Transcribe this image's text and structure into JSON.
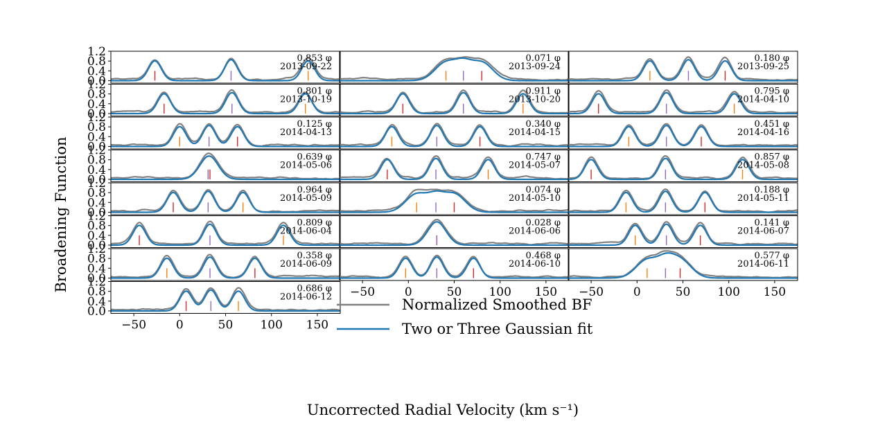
{
  "chart_data": {
    "type": "line",
    "xlabel": "Uncorrected Radial Velocity (km s⁻¹)",
    "ylabel": "Broadening Function",
    "xlim": [
      -75,
      175
    ],
    "ylim": [
      -0.1,
      1.2
    ],
    "yticks": [
      "1.2",
      "0.8",
      "0.4",
      "0.0"
    ],
    "xticks": [
      -50,
      0,
      50,
      100,
      150
    ],
    "xtick_labels": [
      "−50",
      "0",
      "50",
      "100",
      "150"
    ],
    "grid": false,
    "legend": {
      "placement": "lower-center",
      "entries": [
        {
          "label": "Normalized Smoothed BF",
          "color": "#808080"
        },
        {
          "label": "Two or Three Gaussian fit",
          "color": "#1f77b4"
        }
      ]
    },
    "marker_colors": {
      "primary": "#d62728",
      "secondary": "#ff7f0e",
      "tertiary": "#9467bd"
    },
    "phase_suffix": "φ",
    "panels": [
      {
        "phase": "0.853",
        "date": "2013-09-22",
        "v1": -27,
        "v2": 140,
        "v3": 56
      },
      {
        "phase": "0.071",
        "date": "2013-09-24",
        "v1": 80,
        "v2": 41,
        "v3": 60
      },
      {
        "phase": "0.180",
        "phase_label": "0.180",
        "date": "2013-09-25",
        "v1": 96,
        "v2": 14,
        "v3": 56
      },
      {
        "phase": "0.801",
        "date": "2013-10-19",
        "v1": -17,
        "v2": 137,
        "v3": 57
      },
      {
        "phase": "0.911",
        "date": "2013-10-20",
        "v1": -6,
        "v2": 125,
        "v3": 60
      },
      {
        "phase": "0.795",
        "date": "2014-04-10",
        "v1": -42,
        "v2": 106,
        "v3": 32
      },
      {
        "phase": "0.125",
        "date": "2014-04-13",
        "v1": 63,
        "v2": 0,
        "v3": 32
      },
      {
        "phase": "0.340",
        "date": "2014-04-15",
        "v1": 78,
        "v2": -18,
        "v3": 31
      },
      {
        "phase": "0.451",
        "date": "2014-04-16",
        "v1": 70,
        "v2": -9,
        "v3": 32
      },
      {
        "phase": "0.639",
        "date": "2014-05-06",
        "v1": 33,
        "v2": 31,
        "v3": 31
      },
      {
        "phase": "0.747",
        "date": "2014-05-07",
        "v1": -23,
        "v2": 87,
        "v3": 30
      },
      {
        "phase": "0.857",
        "date": "2014-05-08",
        "v1": -50,
        "v2": 115,
        "v3": 31
      },
      {
        "phase": "0.964",
        "date": "2014-05-09",
        "v1": -7,
        "v2": 69,
        "v3": 31
      },
      {
        "phase": "0.074",
        "date": "2014-05-10",
        "v1": 50,
        "v2": 9,
        "v3": 30
      },
      {
        "phase": "0.188",
        "date": "2014-05-11",
        "v1": 74,
        "v2": -12,
        "v3": 31
      },
      {
        "phase": "0.809",
        "date": "2014-06-04",
        "v1": -44,
        "v2": 113,
        "v3": 33
      },
      {
        "phase": "0.028",
        "date": "2014-06-06",
        "v1": 31,
        "v2": 31,
        "v3": 31
      },
      {
        "phase": "0.141",
        "date": "2014-06-07",
        "v1": 69,
        "v2": -2,
        "v3": 32
      },
      {
        "phase": "0.358",
        "date": "2014-06-09",
        "v1": 82,
        "v2": -14,
        "v3": 33
      },
      {
        "phase": "0.468",
        "date": "2014-06-10",
        "v1": 71,
        "v2": -3,
        "v3": 31
      },
      {
        "phase": "0.577",
        "date": "2014-06-11",
        "v1": 47,
        "v2": 11,
        "v3": 31
      },
      {
        "phase": "0.686",
        "date": "2014-06-12",
        "v1": 7,
        "v2": 64,
        "v3": 34
      }
    ]
  }
}
